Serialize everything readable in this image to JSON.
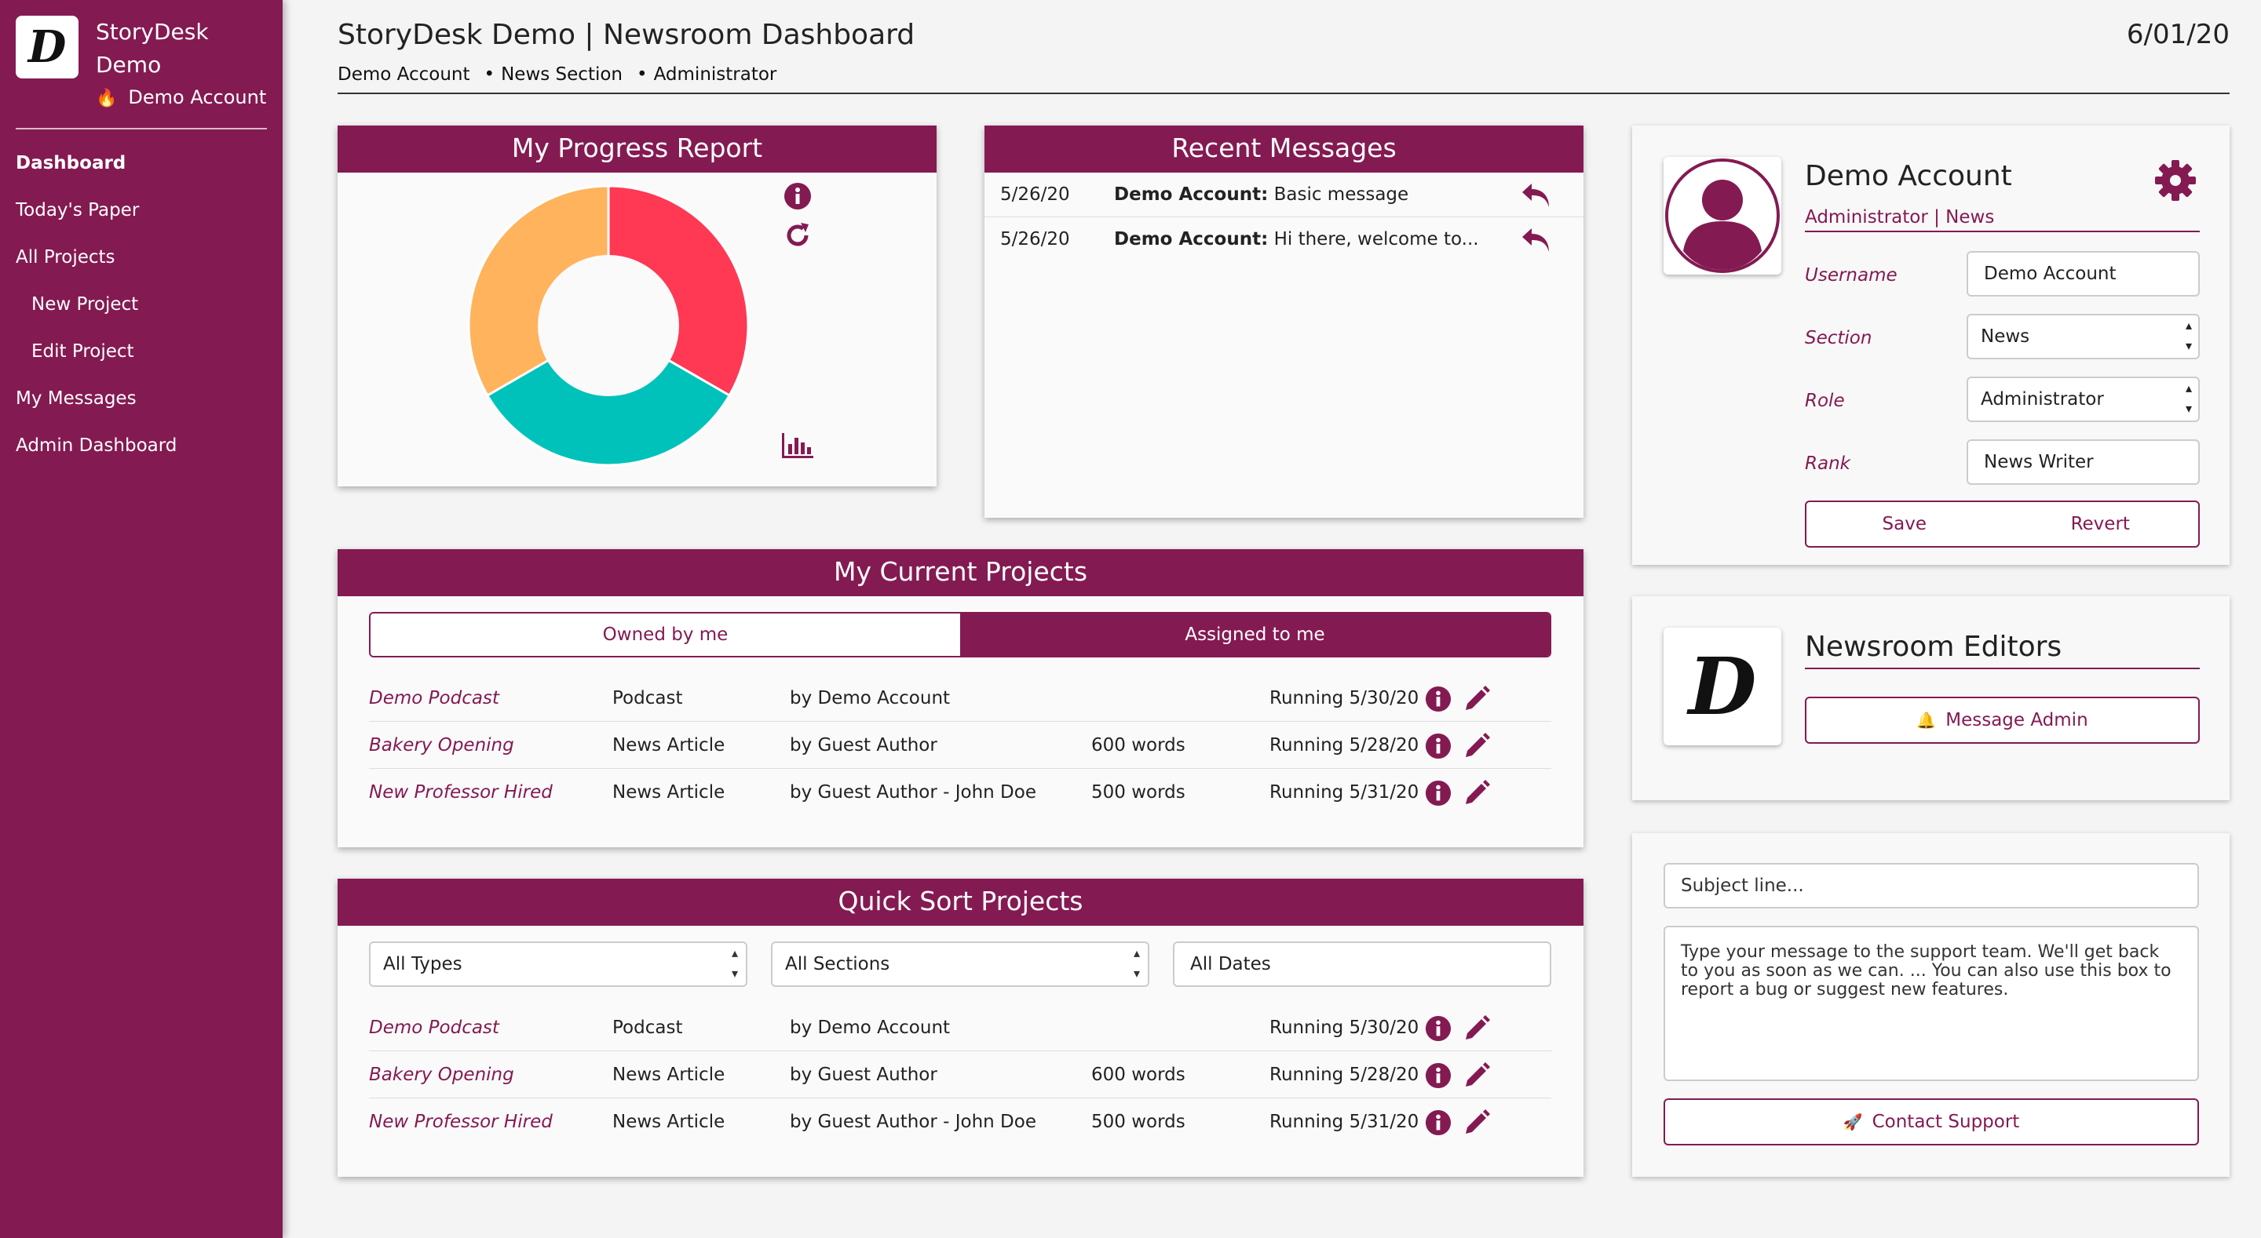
{
  "app": {
    "name": "StoryDesk Demo",
    "account": "Demo Account",
    "logo_letter": "D"
  },
  "nav": {
    "items": [
      {
        "label": "Dashboard"
      },
      {
        "label": "Today's Paper"
      },
      {
        "label": "All Projects"
      },
      {
        "label": "New Project"
      },
      {
        "label": "Edit Project"
      },
      {
        "label": "My Messages"
      },
      {
        "label": "Admin Dashboard"
      }
    ]
  },
  "header": {
    "title": "StoryDesk Demo | Newsroom Dashboard",
    "date": "6/01/20",
    "breadcrumb": [
      "Demo Account",
      "News Section",
      "Administrator"
    ]
  },
  "progress": {
    "title": "My Progress Report",
    "icons": [
      "info-icon",
      "refresh-icon",
      "bar-chart-icon"
    ],
    "colors": [
      "#ff3854",
      "#00c2bb",
      "#ffb35c"
    ]
  },
  "chart_data": {
    "type": "pie",
    "values": [
      33.3,
      33.3,
      33.3
    ],
    "colors": [
      "#ff3854",
      "#00c2bb",
      "#ffb35c"
    ]
  },
  "messages": {
    "title": "Recent Messages",
    "items": [
      {
        "date": "5/26/20",
        "sender": "Demo Account:",
        "text": "Basic message"
      },
      {
        "date": "5/26/20",
        "sender": "Demo Account:",
        "text": "Hi there, welcome to..."
      }
    ]
  },
  "current_projects": {
    "title": "My Current Projects",
    "tabs": [
      "Owned by me",
      "Assigned to me"
    ],
    "active_tab": "Assigned to me",
    "rows": [
      {
        "title": "Demo Podcast",
        "type": "Podcast",
        "author": "by Demo Account",
        "words": "",
        "run": "Running 5/30/20"
      },
      {
        "title": "Bakery Opening",
        "type": "News Article",
        "author": "by Guest Author",
        "words": "600 words",
        "run": "Running 5/28/20"
      },
      {
        "title": "New Professor Hired",
        "type": "News Article",
        "author": "by Guest Author - John Doe",
        "words": "500 words",
        "run": "Running 5/31/20"
      }
    ]
  },
  "quick_sort": {
    "title": "Quick Sort Projects",
    "filters": {
      "types": "All Types",
      "sections": "All Sections",
      "dates_placeholder": "All Dates"
    },
    "rows": [
      {
        "title": "Demo Podcast",
        "type": "Podcast",
        "author": "by Demo Account",
        "words": "",
        "run": "Running 5/30/20"
      },
      {
        "title": "Bakery Opening",
        "type": "News Article",
        "author": "by Guest Author",
        "words": "600 words",
        "run": "Running 5/28/20"
      },
      {
        "title": "New Professor Hired",
        "type": "News Article",
        "author": "by Guest Author - John Doe",
        "words": "500 words",
        "run": "Running 5/31/20"
      }
    ]
  },
  "profile": {
    "name": "Demo Account",
    "role_line": "Administrator | News",
    "fields": {
      "username": {
        "label": "Username",
        "value": "Demo Account"
      },
      "section": {
        "label": "Section",
        "value": "News"
      },
      "role": {
        "label": "Role",
        "value": "Administrator"
      },
      "rank": {
        "label": "Rank",
        "value": "News Writer"
      }
    },
    "save_label": "Save",
    "revert_label": "Revert"
  },
  "editors": {
    "title": "Newsroom Editors",
    "button_label": "Message Admin"
  },
  "support": {
    "subject_placeholder": "Subject line...",
    "message_placeholder": "Type your message to the support team. We'll get back to you as soon as we can. ... You can also use this box to report a bug or suggest new features.",
    "button_label": "Contact Support"
  },
  "theme": {
    "accent": "#841a52"
  }
}
